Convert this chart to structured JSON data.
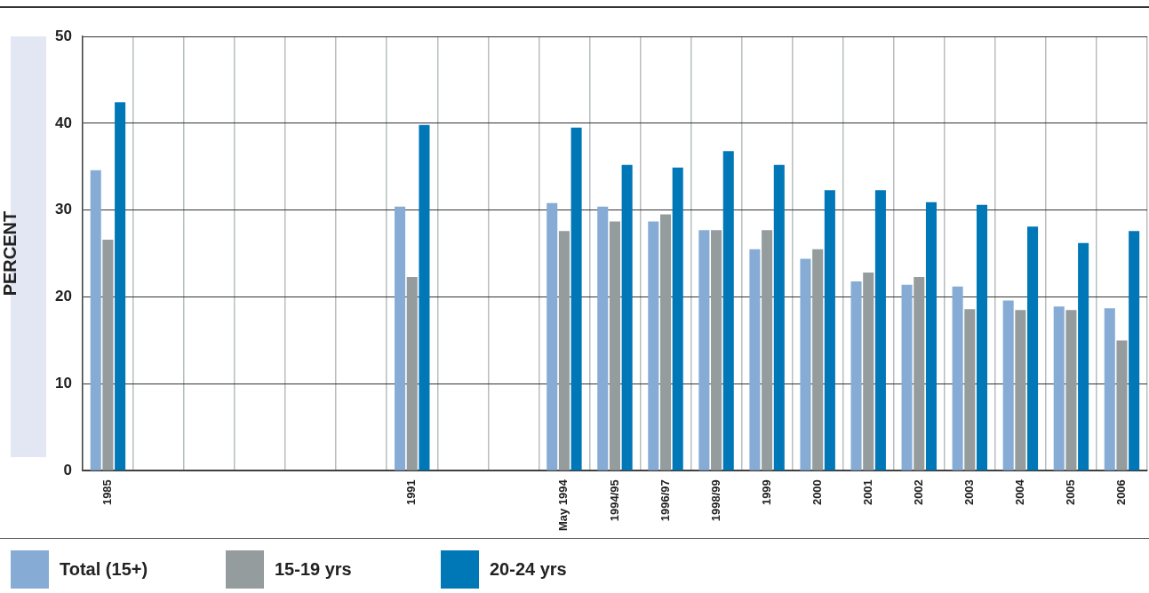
{
  "chart_data": {
    "type": "bar",
    "ylabel": "PERCENT",
    "categories": [
      "1985",
      null,
      null,
      null,
      null,
      null,
      "1991",
      null,
      null,
      "May 1994",
      "1994/95",
      "1996/97",
      "1998/99",
      "1999",
      "2000",
      "2001",
      "2002",
      "2003",
      "2004",
      "2005",
      "2006"
    ],
    "series": [
      {
        "name": "Total (15+)",
        "color": "#86acd6",
        "values": [
          34.6,
          null,
          null,
          null,
          null,
          null,
          30.4,
          null,
          null,
          30.8,
          30.4,
          28.7,
          27.7,
          25.5,
          24.4,
          21.8,
          21.4,
          21.2,
          19.6,
          18.9,
          18.7
        ]
      },
      {
        "name": "15-19 yrs",
        "color": "#959c9e",
        "values": [
          26.6,
          null,
          null,
          null,
          null,
          null,
          22.3,
          null,
          null,
          27.6,
          28.7,
          29.5,
          27.7,
          27.7,
          25.5,
          22.8,
          22.3,
          18.6,
          18.5,
          18.5,
          15.0
        ]
      },
      {
        "name": "20-24 yrs",
        "color": "#0077b6",
        "values": [
          42.4,
          null,
          null,
          null,
          null,
          null,
          39.8,
          null,
          null,
          39.5,
          35.2,
          34.9,
          36.8,
          35.2,
          32.3,
          32.3,
          30.9,
          30.6,
          28.1,
          26.2,
          27.6
        ]
      }
    ],
    "ylim": [
      0,
      50
    ],
    "yticks": [
      0,
      10,
      20,
      30,
      40,
      50
    ],
    "grid": true,
    "legend": "bottom"
  }
}
